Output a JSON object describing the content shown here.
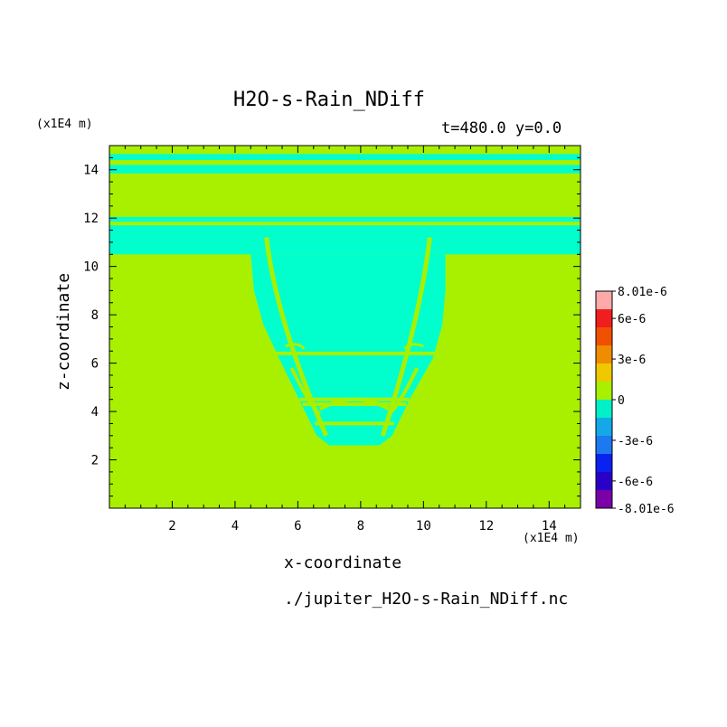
{
  "chart_data": {
    "type": "heatmap",
    "title": "H2O-s-Rain_NDiff",
    "subtitle": "t=480.0 y=0.0",
    "xlabel": "x-coordinate",
    "ylabel": "z-coordinate",
    "x_unit": "(x1E4 m)",
    "y_unit": "(x1E4 m)",
    "xlim": [
      0,
      15
    ],
    "ylim": [
      0,
      15
    ],
    "x_ticks": [
      "2",
      "4",
      "6",
      "8",
      "10",
      "12",
      "14"
    ],
    "y_ticks": [
      "2",
      "4",
      "6",
      "8",
      "10",
      "12",
      "14"
    ],
    "colorbar": {
      "labels": [
        "8.01e-6",
        "6e-6",
        "3e-6",
        "0",
        "-3e-6",
        "-6e-6",
        "-8.01e-6"
      ],
      "label_values": [
        8.01e-06,
        6e-06,
        3e-06,
        0,
        -3e-06,
        -6e-06,
        -8.01e-06
      ],
      "colors": [
        "#7a00a8",
        "#2a00c8",
        "#0a22f0",
        "#1e78f0",
        "#14a8e8",
        "#00f0c8",
        "#a8f000",
        "#f0c800",
        "#f08c00",
        "#f05000",
        "#f01e1e",
        "#ffaaaa"
      ]
    },
    "field": {
      "background_value": "0",
      "background_color": "#a8f000",
      "negative_color": "#00ffcc",
      "layers_negative_z": [
        [
          14.4,
          14.65
        ],
        [
          13.85,
          14.2
        ],
        [
          11.85,
          12.05
        ],
        [
          10.5,
          11.7
        ]
      ],
      "plume_negative": {
        "outer_boundary": [
          [
            4.5,
            10.5
          ],
          [
            4.6,
            9.0
          ],
          [
            4.9,
            7.6
          ],
          [
            5.4,
            6.2
          ],
          [
            6.0,
            4.6
          ],
          [
            6.6,
            3.0
          ],
          [
            7.0,
            2.6
          ],
          [
            8.6,
            2.6
          ],
          [
            9.0,
            3.0
          ],
          [
            9.6,
            4.6
          ],
          [
            10.3,
            6.2
          ],
          [
            10.6,
            7.6
          ],
          [
            10.7,
            9.0
          ],
          [
            10.7,
            10.5
          ]
        ],
        "inner_zero_lines_z": [
          6.4,
          4.5,
          4.3,
          3.5
        ]
      }
    }
  },
  "footer": {
    "filename": "./jupiter_H2O-s-Rain_NDiff.nc"
  }
}
